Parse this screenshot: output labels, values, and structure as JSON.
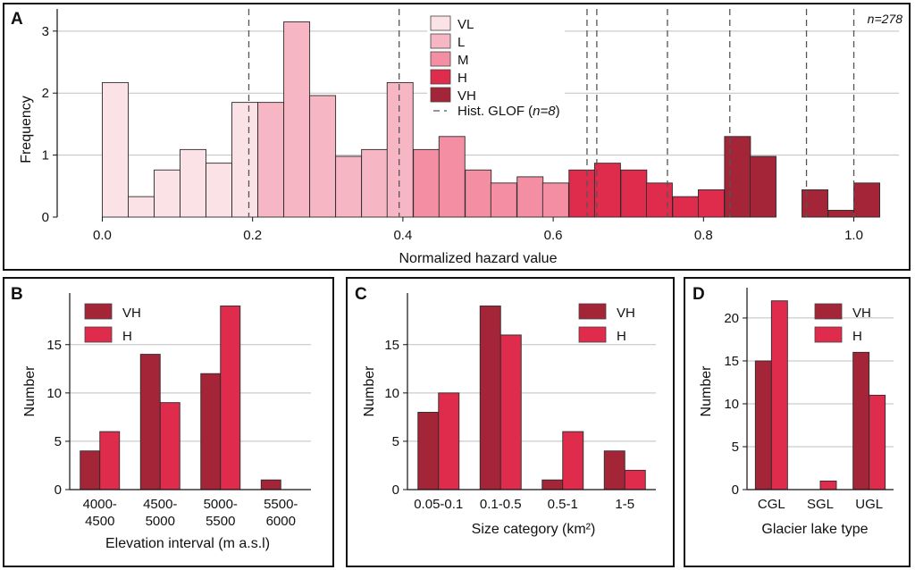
{
  "chart_data": [
    {
      "panel": "A",
      "type": "bar",
      "subtype": "histogram",
      "xlabel": "Normalized hazard value",
      "ylabel": "Frequency",
      "annotation": "n=278",
      "xlim": [
        -0.06,
        1.06
      ],
      "ylim": [
        0,
        3.3
      ],
      "xticks": [
        "0.0",
        "0.2",
        "0.4",
        "0.6",
        "0.8",
        "1.0"
      ],
      "yticks": [
        "0",
        "1",
        "2",
        "3"
      ],
      "bin_width": 0.0345,
      "bins": [
        {
          "x0": 0.0,
          "value": 2.17,
          "cls": "VL"
        },
        {
          "x0": 0.0345,
          "value": 0.33,
          "cls": "VL"
        },
        {
          "x0": 0.069,
          "value": 0.76,
          "cls": "VL"
        },
        {
          "x0": 0.1035,
          "value": 1.09,
          "cls": "VL"
        },
        {
          "x0": 0.138,
          "value": 0.87,
          "cls": "VL"
        },
        {
          "x0": 0.1725,
          "value": 1.85,
          "cls": "VL"
        },
        {
          "x0": 0.207,
          "value": 1.85,
          "cls": "L"
        },
        {
          "x0": 0.2415,
          "value": 3.15,
          "cls": "L"
        },
        {
          "x0": 0.276,
          "value": 1.96,
          "cls": "L"
        },
        {
          "x0": 0.3105,
          "value": 0.98,
          "cls": "L"
        },
        {
          "x0": 0.345,
          "value": 1.09,
          "cls": "L"
        },
        {
          "x0": 0.379,
          "value": 2.17,
          "cls": "L"
        },
        {
          "x0": 0.414,
          "value": 1.09,
          "cls": "M"
        },
        {
          "x0": 0.448,
          "value": 1.3,
          "cls": "M"
        },
        {
          "x0": 0.483,
          "value": 0.76,
          "cls": "M"
        },
        {
          "x0": 0.517,
          "value": 0.55,
          "cls": "M"
        },
        {
          "x0": 0.552,
          "value": 0.65,
          "cls": "M"
        },
        {
          "x0": 0.586,
          "value": 0.55,
          "cls": "M"
        },
        {
          "x0": 0.621,
          "value": 0.76,
          "cls": "H"
        },
        {
          "x0": 0.655,
          "value": 0.87,
          "cls": "H"
        },
        {
          "x0": 0.69,
          "value": 0.76,
          "cls": "H"
        },
        {
          "x0": 0.724,
          "value": 0.55,
          "cls": "H"
        },
        {
          "x0": 0.759,
          "value": 0.33,
          "cls": "H"
        },
        {
          "x0": 0.793,
          "value": 0.44,
          "cls": "H"
        },
        {
          "x0": 0.828,
          "value": 1.3,
          "cls": "VH"
        },
        {
          "x0": 0.862,
          "value": 0.98,
          "cls": "VH"
        },
        {
          "x0": 0.931,
          "value": 0.44,
          "cls": "VH"
        },
        {
          "x0": 0.966,
          "value": 0.11,
          "cls": "VH"
        },
        {
          "x0": 1.0,
          "value": 0.55,
          "cls": "VH"
        }
      ],
      "glof_lines": [
        0.195,
        0.395,
        0.645,
        0.658,
        0.752,
        0.835,
        0.937,
        1.0
      ],
      "legend": [
        {
          "key": "VL",
          "label": "VL",
          "color": "#fbe2e6"
        },
        {
          "key": "L",
          "label": "L",
          "color": "#f7b6c4"
        },
        {
          "key": "M",
          "label": "M",
          "color": "#f48fa3"
        },
        {
          "key": "H",
          "label": "H",
          "color": "#e02c4c"
        },
        {
          "key": "VH",
          "label": "VH",
          "color": "#a52538"
        }
      ],
      "legend_glof_prefix": "Hist. GLOF (",
      "legend_glof_n": "n=8",
      "legend_glof_suffix": ")"
    },
    {
      "panel": "B",
      "type": "bar",
      "categories": [
        "4000-\n4500",
        "4500-\n5000",
        "5000-\n5500",
        "5500-\n6000"
      ],
      "series": [
        {
          "name": "VH",
          "values": [
            4,
            14,
            12,
            1
          ],
          "color": "#a52538"
        },
        {
          "name": "H",
          "values": [
            6,
            9,
            19,
            0
          ],
          "color": "#e02c4c"
        }
      ],
      "xlabel": "Elevation interval (m a.s.l)",
      "ylabel": "Number",
      "ylim": [
        0,
        19.6
      ],
      "yticks": [
        "0",
        "5",
        "10",
        "15"
      ]
    },
    {
      "panel": "C",
      "type": "bar",
      "categories": [
        "0.05-0.1",
        "0.1-0.5",
        "0.5-1",
        "1-5"
      ],
      "series": [
        {
          "name": "VH",
          "values": [
            8,
            19,
            1,
            4
          ],
          "color": "#a52538"
        },
        {
          "name": "H",
          "values": [
            10,
            16,
            6,
            2
          ],
          "color": "#e02c4c"
        }
      ],
      "xlabel": "Size category (km²)",
      "ylabel": "Number",
      "ylim": [
        0,
        19.6
      ],
      "yticks": [
        "0",
        "5",
        "10",
        "15"
      ]
    },
    {
      "panel": "D",
      "type": "bar",
      "categories": [
        "CGL",
        "SGL",
        "UGL"
      ],
      "series": [
        {
          "name": "VH",
          "values": [
            15,
            0,
            16
          ],
          "color": "#a52538"
        },
        {
          "name": "H",
          "values": [
            22,
            1,
            11
          ],
          "color": "#e02c4c"
        }
      ],
      "xlabel": "Glacier lake type",
      "ylabel": "Number",
      "ylim": [
        0,
        22.7
      ],
      "yticks": [
        "0",
        "5",
        "10",
        "15",
        "20"
      ]
    }
  ]
}
